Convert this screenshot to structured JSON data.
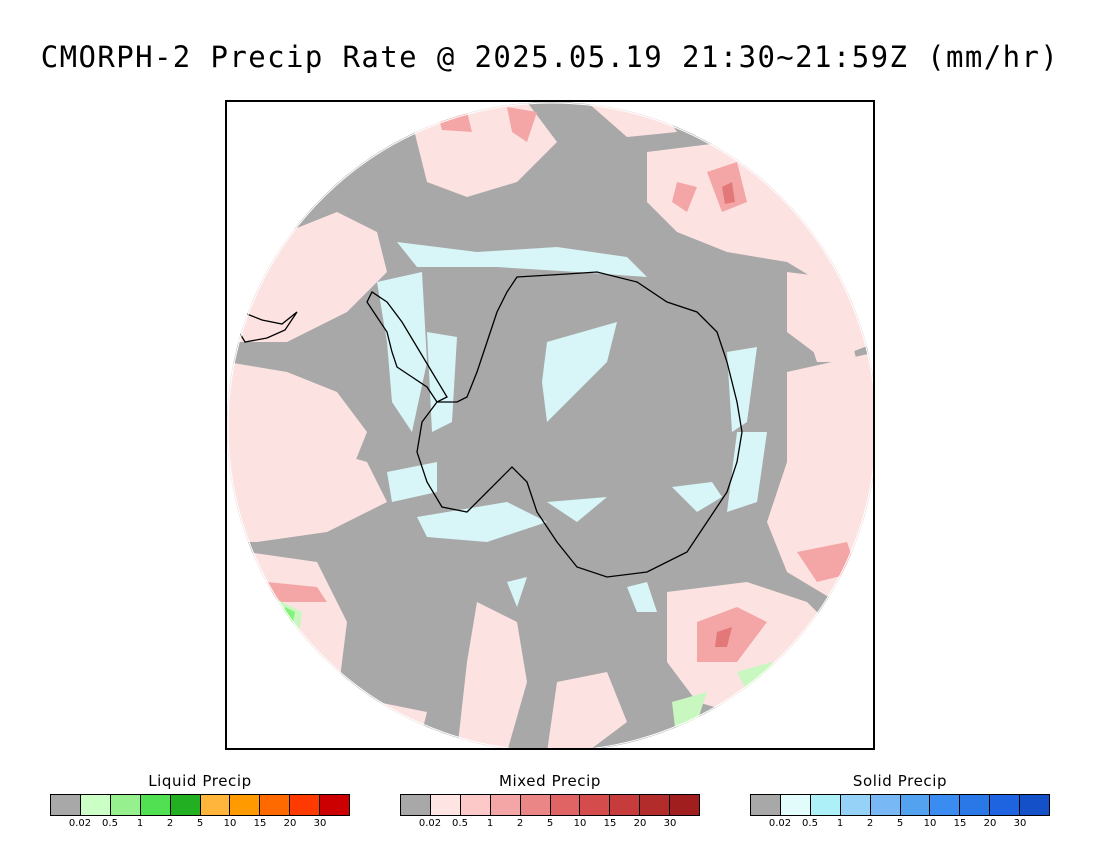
{
  "title": "CMORPH-2 Precip Rate @ 2025.05.19 21:30~21:59Z (mm/hr)",
  "map": {
    "projection": "south-polar-stereographic",
    "region": "Antarctica / Southern Ocean",
    "colors": {
      "no_precip": "#a8a8a8",
      "mixed_light": "#fde2e2",
      "mixed_medium": "#f4a6a6",
      "mixed_heavy": "#e27878",
      "solid_light": "#d8f6f8",
      "liquid_light": "#c8f7c0",
      "liquid_medium": "#86f27a",
      "coastline": "#000000"
    }
  },
  "legends": [
    {
      "title": "Liquid Precip",
      "colors": [
        "#a8a8a8",
        "#ccffc6",
        "#96f08e",
        "#50e052",
        "#22b022",
        "#ffb43c",
        "#ff9a00",
        "#ff6a00",
        "#ff3a00",
        "#cc0000"
      ],
      "ticks": [
        "0.02",
        "0.5",
        "1",
        "2",
        "5",
        "10",
        "15",
        "20",
        "30"
      ]
    },
    {
      "title": "Mixed Precip",
      "colors": [
        "#a8a8a8",
        "#ffe4e4",
        "#fcc8c8",
        "#f4a6a6",
        "#ea8686",
        "#e06464",
        "#d44c4c",
        "#c63c3c",
        "#b22c2c",
        "#a01e1e"
      ],
      "ticks": [
        "0.02",
        "0.5",
        "1",
        "2",
        "5",
        "10",
        "15",
        "20",
        "30"
      ]
    },
    {
      "title": "Solid Precip",
      "colors": [
        "#a8a8a8",
        "#e2fcfc",
        "#aef0f8",
        "#96d2f8",
        "#78b8f4",
        "#52a2f0",
        "#3a8cf0",
        "#2a78e8",
        "#1e64e0",
        "#1450c8"
      ],
      "ticks": [
        "0.02",
        "0.5",
        "1",
        "2",
        "5",
        "10",
        "15",
        "20",
        "30"
      ]
    }
  ]
}
